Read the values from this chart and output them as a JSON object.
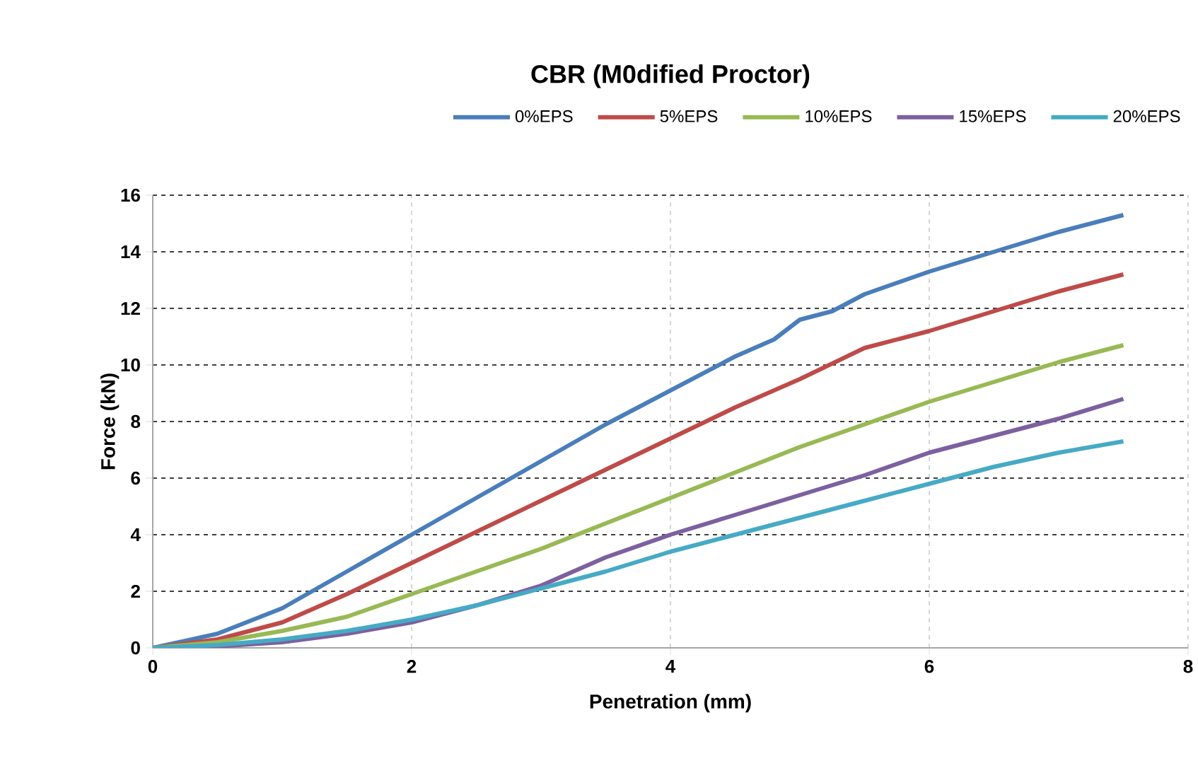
{
  "chart_data": {
    "type": "line",
    "title": "CBR (M0dified Proctor)",
    "xlabel": "Penetration (mm)",
    "ylabel": "Force (kN)",
    "xlim": [
      0,
      8
    ],
    "ylim": [
      0,
      16
    ],
    "xticks": [
      0,
      2,
      4,
      6,
      8
    ],
    "yticks": [
      0,
      2,
      4,
      6,
      8,
      10,
      12,
      14,
      16
    ],
    "grid": true,
    "legend": "top",
    "marker": "none",
    "line_style": "solid",
    "series": [
      {
        "name": "0%EPS",
        "color": "#4a7ebb",
        "x": [
          0,
          0.5,
          1,
          1.5,
          2,
          2.5,
          3,
          3.5,
          4,
          4.5,
          4.8,
          5,
          5.25,
          5.5,
          6,
          6.5,
          7,
          7.5
        ],
        "values": [
          0,
          0.5,
          1.4,
          2.7,
          4.0,
          5.3,
          6.6,
          7.9,
          9.1,
          10.3,
          10.9,
          11.6,
          11.9,
          12.5,
          13.3,
          14.0,
          14.7,
          15.3
        ]
      },
      {
        "name": "5%EPS",
        "color": "#be4b48",
        "x": [
          0,
          0.5,
          1,
          1.5,
          2,
          2.5,
          3,
          3.5,
          4,
          4.5,
          5,
          5.5,
          6,
          6.5,
          7,
          7.5
        ],
        "values": [
          0,
          0.3,
          0.9,
          1.9,
          3.0,
          4.1,
          5.2,
          6.3,
          7.4,
          8.5,
          9.5,
          10.6,
          11.2,
          11.9,
          12.6,
          13.2
        ]
      },
      {
        "name": "10%EPS",
        "color": "#98b954",
        "x": [
          0,
          0.5,
          1,
          1.5,
          2,
          2.5,
          3,
          3.5,
          4,
          4.5,
          5,
          5.5,
          6,
          6.5,
          7,
          7.5
        ],
        "values": [
          0,
          0.2,
          0.6,
          1.1,
          1.9,
          2.7,
          3.5,
          4.4,
          5.3,
          6.2,
          7.1,
          7.9,
          8.7,
          9.4,
          10.1,
          10.7
        ]
      },
      {
        "name": "15%EPS",
        "color": "#7d60a0",
        "x": [
          0,
          0.5,
          1,
          1.5,
          2,
          2.5,
          3,
          3.5,
          4,
          4.5,
          5,
          5.5,
          6,
          6.5,
          7,
          7.5
        ],
        "values": [
          0,
          0.05,
          0.2,
          0.5,
          0.9,
          1.5,
          2.2,
          3.2,
          4.0,
          4.7,
          5.4,
          6.1,
          6.9,
          7.5,
          8.1,
          8.8
        ]
      },
      {
        "name": "20%EPS",
        "color": "#46aac5",
        "x": [
          0,
          0.5,
          1,
          1.5,
          2,
          2.5,
          3,
          3.5,
          4,
          4.5,
          5,
          5.5,
          6,
          6.5,
          7,
          7.5
        ],
        "values": [
          0,
          0.1,
          0.3,
          0.6,
          1.0,
          1.5,
          2.1,
          2.7,
          3.4,
          4.0,
          4.6,
          5.2,
          5.8,
          6.4,
          6.9,
          7.3
        ]
      }
    ]
  }
}
